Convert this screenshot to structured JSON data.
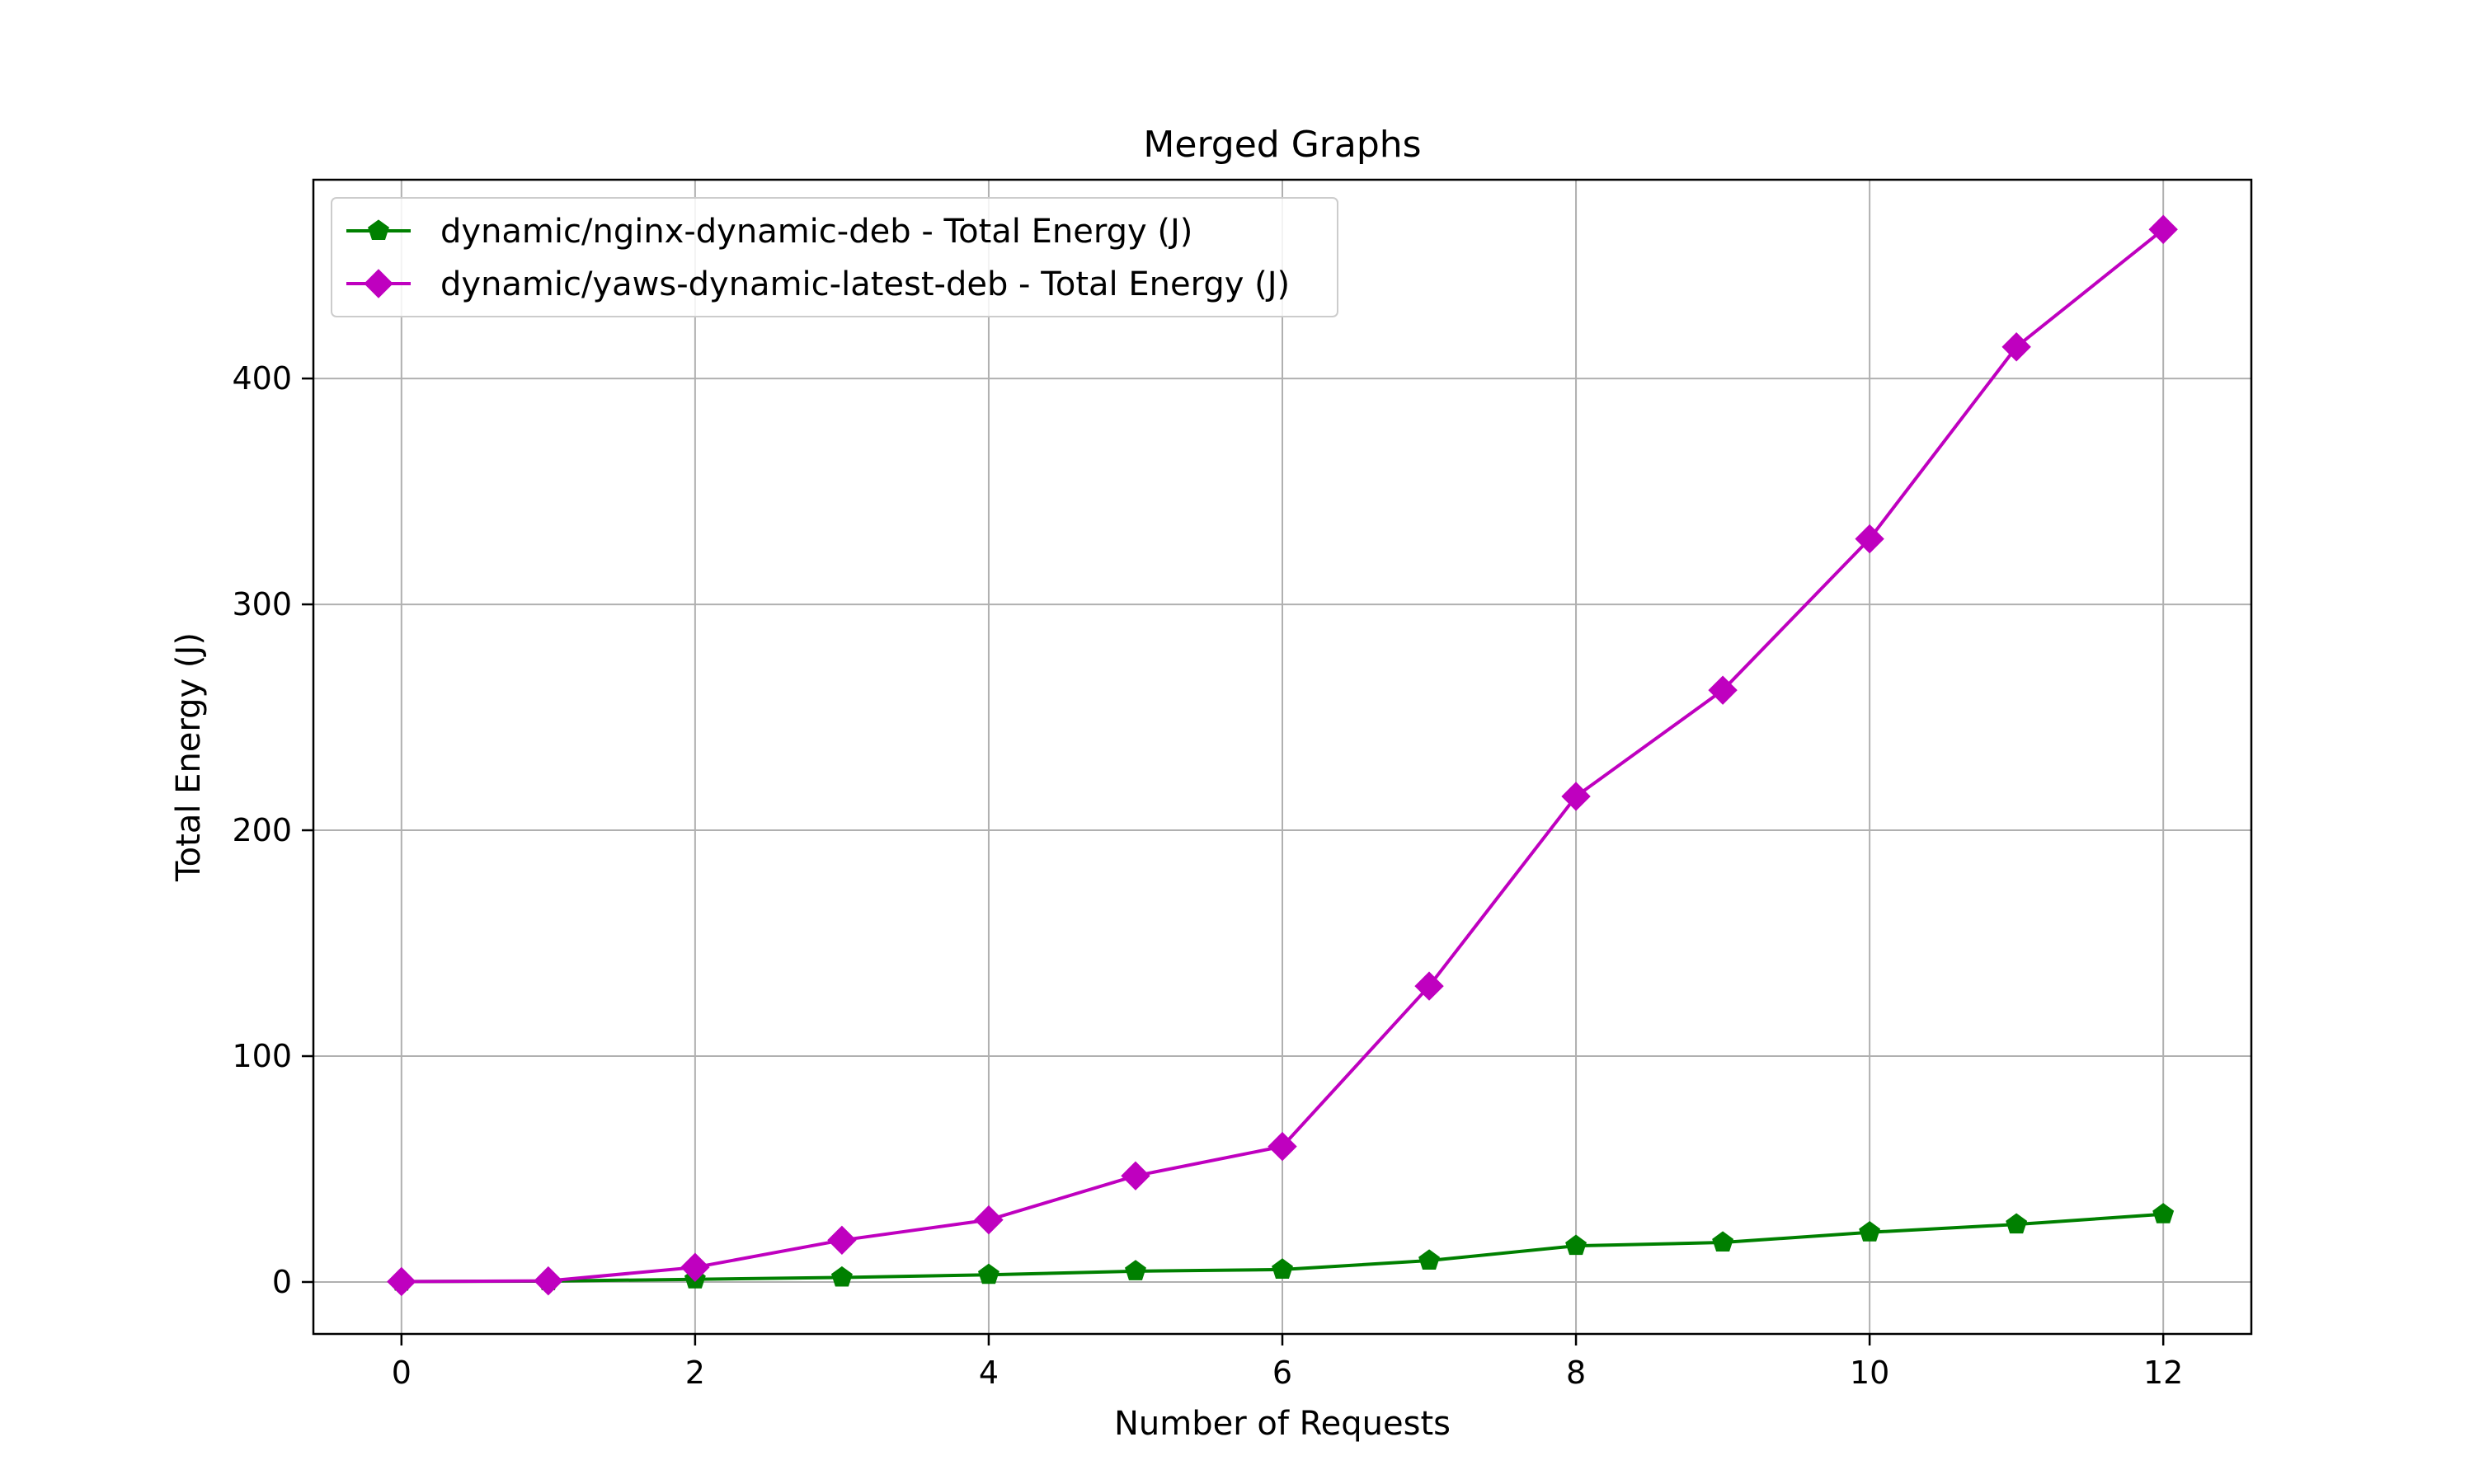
{
  "chart_data": {
    "type": "line",
    "title": "Merged Graphs",
    "xlabel": "Number of Requests",
    "ylabel": "Total Energy (J)",
    "xlim": [
      -0.6,
      12.6
    ],
    "ylim": [
      -23,
      488
    ],
    "xticks": [
      0,
      2,
      4,
      6,
      8,
      10,
      12
    ],
    "yticks": [
      0,
      100,
      200,
      300,
      400
    ],
    "grid": true,
    "legend_position": "upper-left",
    "x": [
      0,
      1,
      2,
      3,
      4,
      5,
      6,
      7,
      8,
      9,
      10,
      11,
      12
    ],
    "series": [
      {
        "name": "dynamic/nginx-dynamic-deb - Total Energy (J)",
        "color": "#008000",
        "marker": "pentagon",
        "values": [
          0.2,
          0.4,
          1.2,
          2.0,
          3.2,
          4.8,
          5.5,
          9.5,
          16,
          17.5,
          22,
          25.5,
          30
        ]
      },
      {
        "name": "dynamic/yaws-dynamic-latest-deb - Total Energy (J)",
        "color": "#bf00bf",
        "marker": "diamond",
        "values": [
          0.2,
          0.5,
          6.5,
          18.5,
          27.5,
          47,
          60,
          131,
          215,
          262,
          329,
          414,
          466
        ]
      }
    ]
  }
}
